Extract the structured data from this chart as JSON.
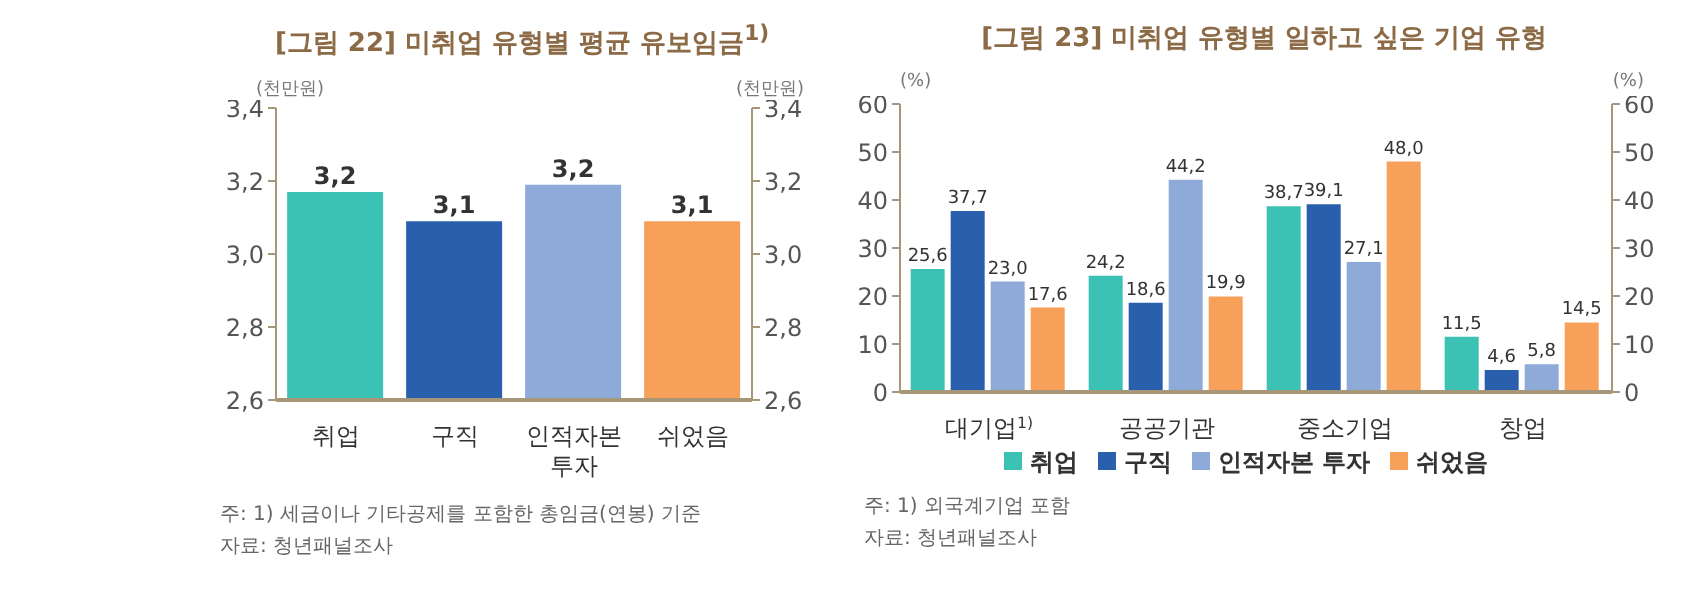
{
  "chart_data": [
    {
      "type": "bar",
      "title": "[그림 22] 미취업 유형별 평균 유보임금$^{1)}$",
      "ylabel": "(천만원)",
      "y2label": "(천만원)",
      "categories": [
        "취업",
        "구직",
        "인적자본 투자",
        "쉬었음"
      ],
      "values": [
        3.17,
        3.09,
        3.19,
        3.09
      ],
      "value_labels": [
        "3,2",
        "3,1",
        "3,2",
        "3,1"
      ],
      "colors": [
        "#3cc2b4",
        "#2a5fae",
        "#8eaad8",
        "#f7a05a"
      ],
      "ylim": [
        2.6,
        3.4
      ],
      "yticks": [
        {
          "value": 2.6,
          "label": "2,6"
        },
        {
          "value": 2.8,
          "label": "2,8"
        },
        {
          "value": 3.0,
          "label": "3,0"
        },
        {
          "value": 3.2,
          "label": "3,2"
        },
        {
          "value": 3.4,
          "label": "3,4"
        }
      ],
      "y2lim": [
        2.6,
        3.4
      ],
      "y2ticks": [
        {
          "value": 2.6,
          "label": "2,6"
        },
        {
          "value": 2.8,
          "label": "2,8"
        },
        {
          "value": 3.0,
          "label": "3,0"
        },
        {
          "value": 3.2,
          "label": "3,2"
        },
        {
          "value": 3.4,
          "label": "3,4"
        }
      ],
      "annotations": [
        "주: 1) 세금이나 기타공제를 포함한 총임금(연봉) 기준",
        "자료: 청년패널조사"
      ]
    },
    {
      "type": "bar",
      "title": "[그림 23] 미취업 유형별 일하고 싶은 기업 유형",
      "ylabel": "(%)",
      "y2label": "(%)",
      "categories": [
        "대기업$^{1)}$",
        "공공기관",
        "중소기업",
        "창업"
      ],
      "series": [
        {
          "name": "취업",
          "color": "#3cc2b4",
          "values": [
            25.6,
            24.2,
            38.7,
            11.5
          ],
          "value_labels": [
            "25,6",
            "24,2",
            "38,7",
            "11,5"
          ]
        },
        {
          "name": "구직",
          "color": "#2a5fae",
          "values": [
            37.7,
            18.6,
            39.1,
            4.6
          ],
          "value_labels": [
            "37,7",
            "18,6",
            "39,1",
            "4,6"
          ]
        },
        {
          "name": "인적자본 투자",
          "color": "#8eaad8",
          "values": [
            23.0,
            44.2,
            27.1,
            5.8
          ],
          "value_labels": [
            "23,0",
            "44,2",
            "27,1",
            "5,8"
          ]
        },
        {
          "name": "쉬었음",
          "color": "#f7a05a",
          "values": [
            17.6,
            19.9,
            48.0,
            14.5
          ],
          "value_labels": [
            "17,6",
            "19,9",
            "48,0",
            "14,5"
          ]
        }
      ],
      "ylim": [
        0,
        60
      ],
      "yticks": [
        0,
        10,
        20,
        30,
        40,
        50,
        60
      ],
      "y2lim": [
        0,
        60
      ],
      "y2ticks": [
        0,
        10,
        20,
        30,
        40,
        50,
        60
      ],
      "legend": "bottom",
      "annotations": [
        "주: 1) 외국계기업 포함",
        "자료: 청년패널조사"
      ]
    }
  ]
}
